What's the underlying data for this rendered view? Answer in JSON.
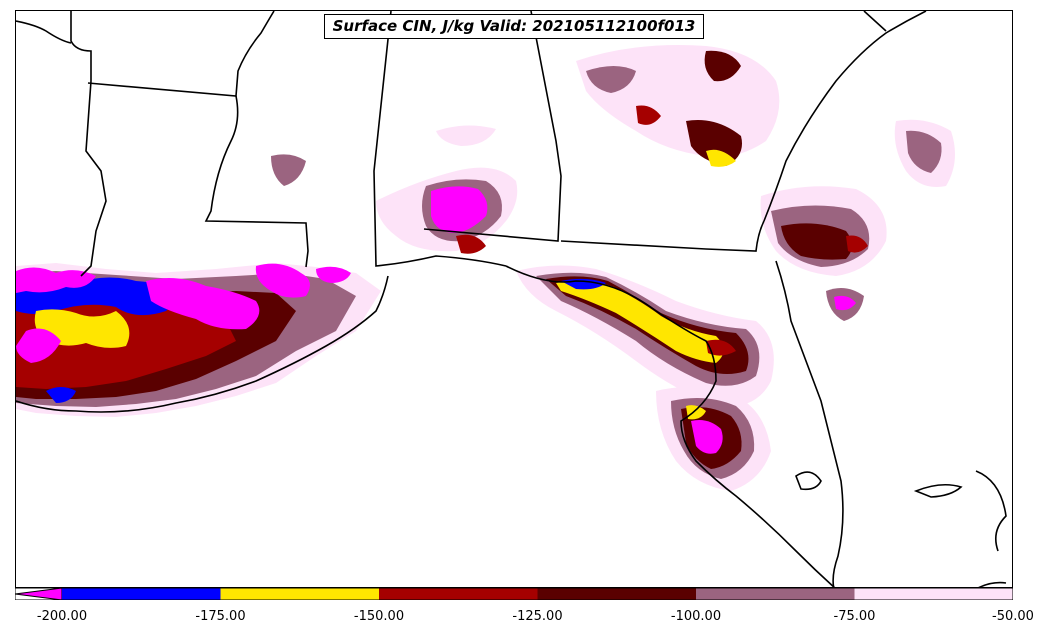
{
  "title": "Surface CIN, J/kg Valid: 202105112100f013",
  "colorbar": {
    "ticks": [
      "-200.00",
      "-175.00",
      "-150.00",
      "-125.00",
      "-100.00",
      "-75.00",
      "-50.00"
    ],
    "bins": [
      {
        "from": -200,
        "to": -175,
        "color": "#0000ff"
      },
      {
        "from": -175,
        "to": -150,
        "color": "#ffe600"
      },
      {
        "from": -150,
        "to": -125,
        "color": "#a50000"
      },
      {
        "from": -125,
        "to": -100,
        "color": "#5a0000"
      },
      {
        "from": -100,
        "to": -75,
        "color": "#9b6480"
      },
      {
        "from": -75,
        "to": -50,
        "color": "#fde3f8"
      }
    ],
    "under_color": "#ff00ff"
  },
  "colors": {
    "magenta": "#ff00ff",
    "blue": "#0000ff",
    "yellow": "#ffe600",
    "red": "#a50000",
    "darkred": "#5a0000",
    "mauve": "#9b6480",
    "pink": "#fde3f8",
    "border": "#000000"
  }
}
